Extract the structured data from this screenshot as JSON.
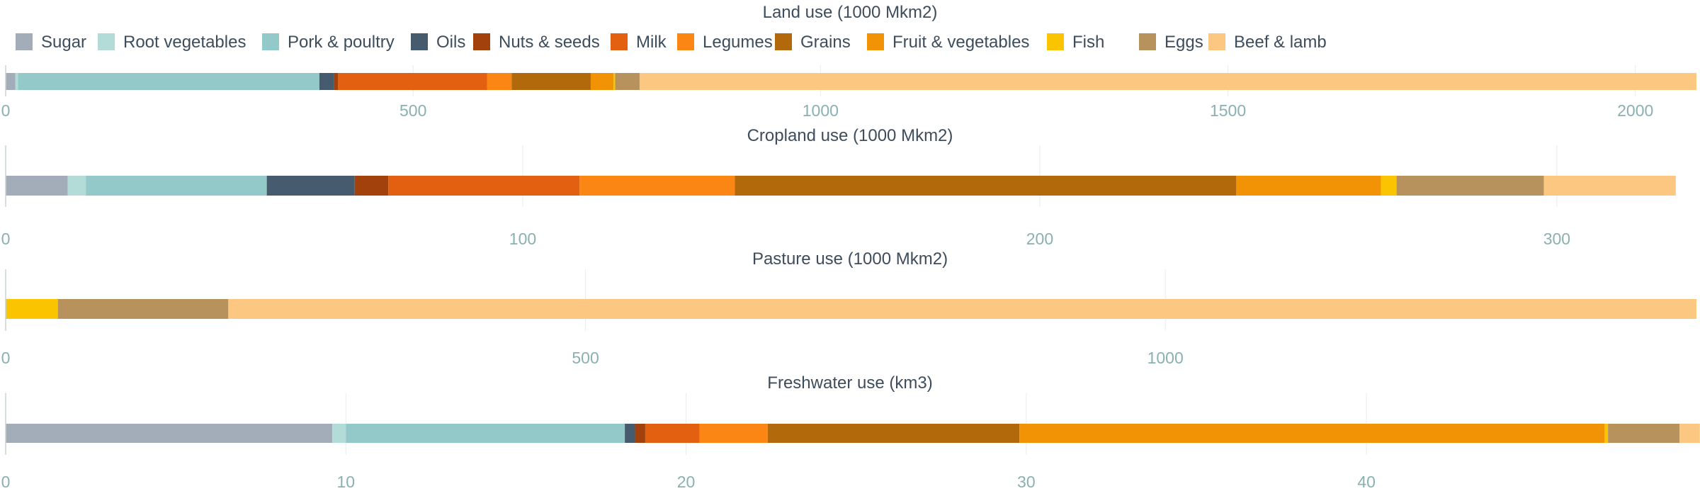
{
  "chart_data": {
    "type": "bar",
    "orientation": "horizontal-stacked",
    "legend_placement": "top-left",
    "grid": true,
    "categories": [
      "Sugar",
      "Root vegetables",
      "Pork & poultry",
      "Oils",
      "Nuts & seeds",
      "Milk",
      "Legumes",
      "Grains",
      "Fruit & vegetables",
      "Fish",
      "Eggs",
      "Beef & lamb"
    ],
    "colors": [
      "#a2adb9",
      "#b3dcd9",
      "#93c9c9",
      "#475b6e",
      "#a2410c",
      "#e2600f",
      "#fb8614",
      "#b1690b",
      "#f29205",
      "#fac500",
      "#b8925c",
      "#fcc780"
    ],
    "panels": [
      {
        "title": "Land use (1000 Mkm2)",
        "xlim": [
          0,
          2075
        ],
        "ticks": [
          0,
          500,
          1000,
          1500,
          2000
        ],
        "values": [
          12,
          3,
          370,
          18,
          5,
          183,
          30,
          97,
          28,
          2,
          30,
          1297
        ]
      },
      {
        "title": "Cropland use (1000 Mkm2)",
        "xlim": [
          0,
          327
        ],
        "ticks": [
          0,
          100,
          200,
          300
        ],
        "values": [
          12,
          3.5,
          35,
          17,
          6.5,
          37,
          30,
          97,
          28,
          3,
          28.5,
          25.5
        ]
      },
      {
        "title": "Pasture use (1000 Mkm2)",
        "xlim": [
          0,
          1458
        ],
        "ticks": [
          0,
          500,
          1000
        ],
        "values": [
          0,
          0,
          0,
          0,
          0,
          0,
          0,
          0,
          0,
          45,
          147,
          1266
        ]
      },
      {
        "title": "Freshwater use (km3)",
        "xlim": [
          0,
          49.7
        ],
        "ticks": [
          0,
          10,
          20,
          30,
          40
        ],
        "values": [
          9.6,
          0.4,
          8.2,
          0.3,
          0.3,
          1.6,
          2.0,
          7.4,
          17.2,
          0.1,
          2.1,
          0.6
        ]
      }
    ]
  }
}
